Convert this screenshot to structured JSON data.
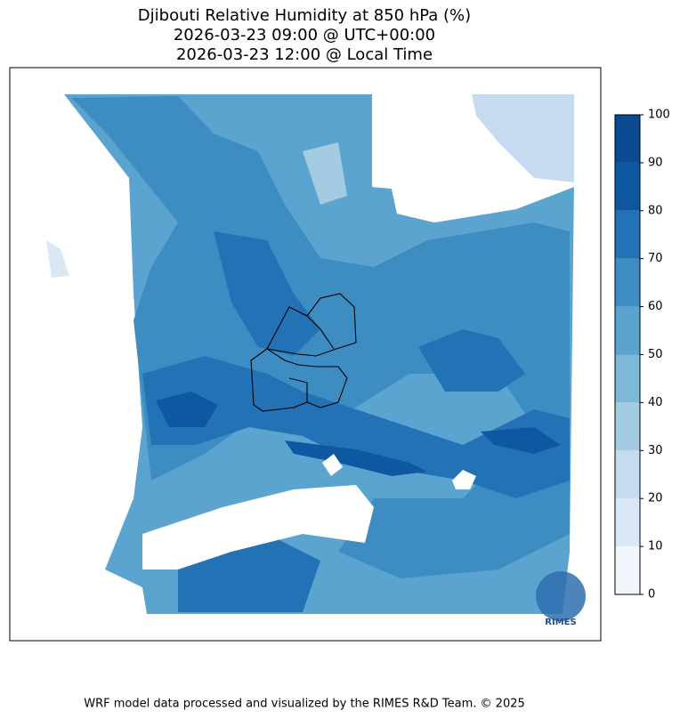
{
  "title": [
    "Djibouti Relative Humidity at 850 hPa (%)",
    "2026-03-23 09:00 @ UTC+00:00",
    "2026-03-23 12:00 @ Local Time"
  ],
  "colorbar": {
    "levels": [
      0,
      10,
      20,
      30,
      40,
      50,
      60,
      70,
      80,
      90,
      100
    ],
    "colors": [
      "#f0f6fc",
      "#dae8f5",
      "#c6dbef",
      "#a3cce3",
      "#7fb9da",
      "#5ca4d0",
      "#3d8dc3",
      "#2272b5",
      "#0e58a2",
      "#0a4a90"
    ]
  },
  "logo": "RIMES",
  "footer": "WRF model data processed and visualized by the RIMES R&D Team. © 2025"
}
